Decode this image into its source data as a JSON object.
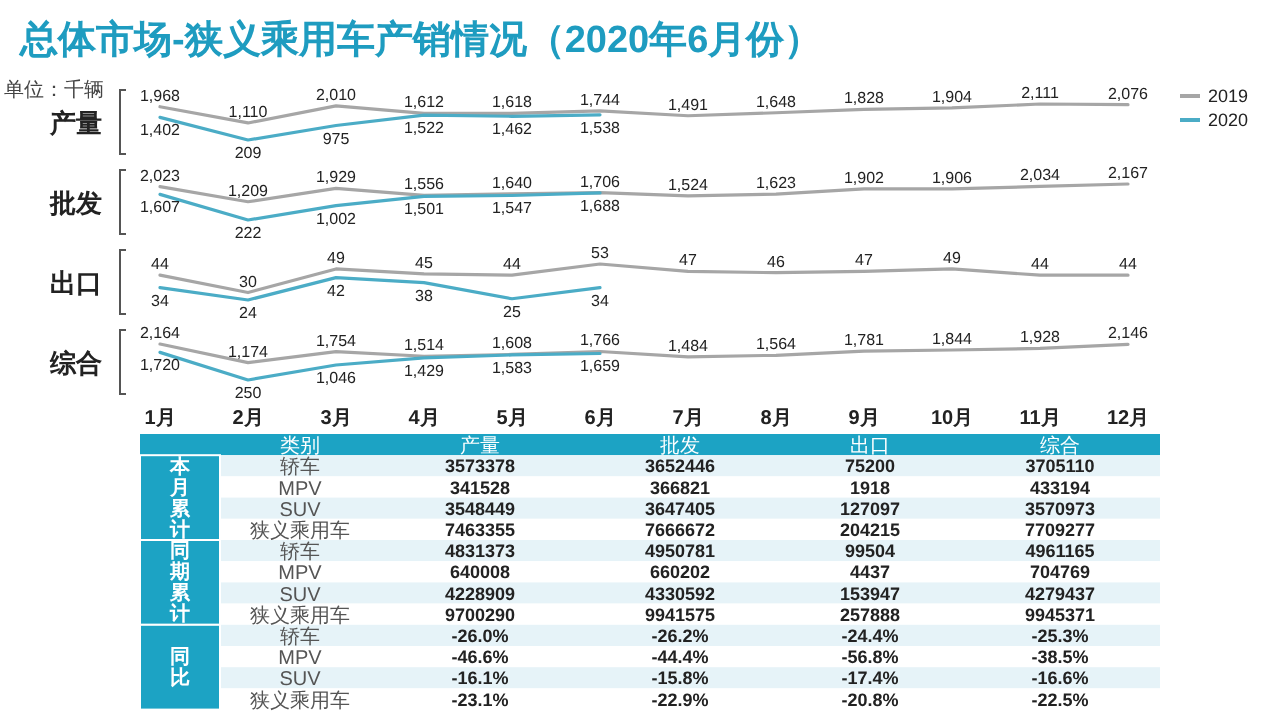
{
  "chart_data": [
    {
      "type": "line",
      "title": "总体市场-狭义乘用车产销情况（2020年6月份）",
      "ylabel": "产量",
      "annotations": [
        "单位：千辆"
      ],
      "legend": "top right",
      "series": [
        {
          "name": "2019",
          "color": "#a6a6a6",
          "values": [
            1968,
            1110,
            2010,
            1612,
            1618,
            1744,
            1491,
            1648,
            1828,
            1904,
            2111,
            2076
          ],
          "value_labels": [
            "1,968",
            "1,110",
            "2,010",
            "1,612",
            "1,618",
            "1,744",
            "1,491",
            "1,648",
            "1,828",
            "1,904",
            "2,111",
            "2,076"
          ]
        },
        {
          "name": "2020",
          "color": "#4bacc6",
          "values": [
            1402,
            209,
            975,
            1522,
            1462,
            1538,
            null,
            null,
            null,
            null,
            null,
            null
          ],
          "value_labels": [
            "1,402",
            "209",
            "975",
            "1,522",
            "1,462",
            "1,538",
            null,
            null,
            null,
            null,
            null,
            null
          ]
        }
      ]
    },
    {
      "type": "line",
      "ylabel": "批发",
      "series": [
        {
          "color": "#a6a6a6",
          "values": [
            2023,
            1209,
            1929,
            1556,
            1640,
            1706,
            1524,
            1623,
            1902,
            1906,
            2034,
            2167
          ],
          "value_labels": [
            "2,023",
            "1,209",
            "1,929",
            "1,556",
            "1,640",
            "1,706",
            "1,524",
            "1,623",
            "1,902",
            "1,906",
            "2,034",
            "2,167"
          ]
        },
        {
          "color": "#4bacc6",
          "values": [
            1607,
            222,
            1002,
            1501,
            1547,
            1688,
            null,
            null,
            null,
            null,
            null,
            null
          ],
          "value_labels": [
            "1,607",
            "222",
            "1,002",
            "1,501",
            "1,547",
            "1,688",
            null,
            null,
            null,
            null,
            null,
            null
          ]
        }
      ]
    },
    {
      "type": "line",
      "ylabel": "出口",
      "series": [
        {
          "color": "#a6a6a6",
          "values": [
            44,
            30,
            49,
            45,
            44,
            53,
            47,
            46,
            47,
            49,
            44,
            44
          ],
          "value_labels": [
            "44",
            "30",
            "49",
            "45",
            "44",
            "53",
            "47",
            "46",
            "47",
            "49",
            "44",
            "44"
          ]
        },
        {
          "color": "#4bacc6",
          "values": [
            34,
            24,
            42,
            38,
            25,
            34,
            null,
            null,
            null,
            null,
            null,
            null
          ],
          "value_labels": [
            "34",
            "24",
            "42",
            "38",
            "25",
            "34",
            null,
            null,
            null,
            null,
            null,
            null
          ]
        }
      ]
    },
    {
      "type": "line",
      "ylabel": "综合",
      "categories": [
        "1月",
        "2月",
        "3月",
        "4月",
        "5月",
        "6月",
        "7月",
        "8月",
        "9月",
        "10月",
        "11月",
        "12月"
      ],
      "tick_labels": "x",
      "series": [
        {
          "color": "#a6a6a6",
          "values": [
            2164,
            1174,
            1754,
            1514,
            1608,
            1766,
            1484,
            1564,
            1781,
            1844,
            1928,
            2146
          ],
          "value_labels": [
            "2,164",
            "1,174",
            "1,754",
            "1,514",
            "1,608",
            "1,766",
            "1,484",
            "1,564",
            "1,781",
            "1,844",
            "1,928",
            "2,146"
          ]
        },
        {
          "color": "#4bacc6",
          "values": [
            1720,
            250,
            1046,
            1429,
            1583,
            1659,
            null,
            null,
            null,
            null,
            null,
            null
          ],
          "value_labels": [
            "1,720",
            "250",
            "1,046",
            "1,429",
            "1,583",
            "1,659",
            null,
            null,
            null,
            null,
            null,
            null
          ]
        }
      ]
    },
    {
      "type": "other",
      "categories": [
        "类别",
        "产量",
        "批发",
        "出口",
        "综合"
      ],
      "annotations": [
        "本月累计",
        "同期累计",
        "同比"
      ],
      "y_categories": [
        "轿车",
        "MPV",
        "SUV",
        "狭义乘用车",
        "轿车",
        "MPV",
        "SUV",
        "狭义乘用车",
        "轿车",
        "MPV",
        "SUV",
        "狭义乘用车"
      ],
      "cell_labels": [
        [
          "3573378",
          "3652446",
          "75200",
          "3705110"
        ],
        [
          "341528",
          "366821",
          "1918",
          "433194"
        ],
        [
          "3548449",
          "3647405",
          "127097",
          "3570973"
        ],
        [
          "7463355",
          "7666672",
          "204215",
          "7709277"
        ],
        [
          "4831373",
          "4950781",
          "99504",
          "4961165"
        ],
        [
          "640008",
          "660202",
          "4437",
          "704769"
        ],
        [
          "4228909",
          "4330592",
          "153947",
          "4279437"
        ],
        [
          "9700290",
          "9941575",
          "257888",
          "9945371"
        ],
        [
          "-26.0%",
          "-26.2%",
          "-24.4%",
          "-25.3%"
        ],
        [
          "-46.6%",
          "-44.4%",
          "-56.8%",
          "-38.5%"
        ],
        [
          "-16.1%",
          "-15.8%",
          "-17.4%",
          "-16.6%"
        ],
        [
          "-23.1%",
          "-22.9%",
          "-20.8%",
          "-22.5%"
        ]
      ]
    }
  ]
}
